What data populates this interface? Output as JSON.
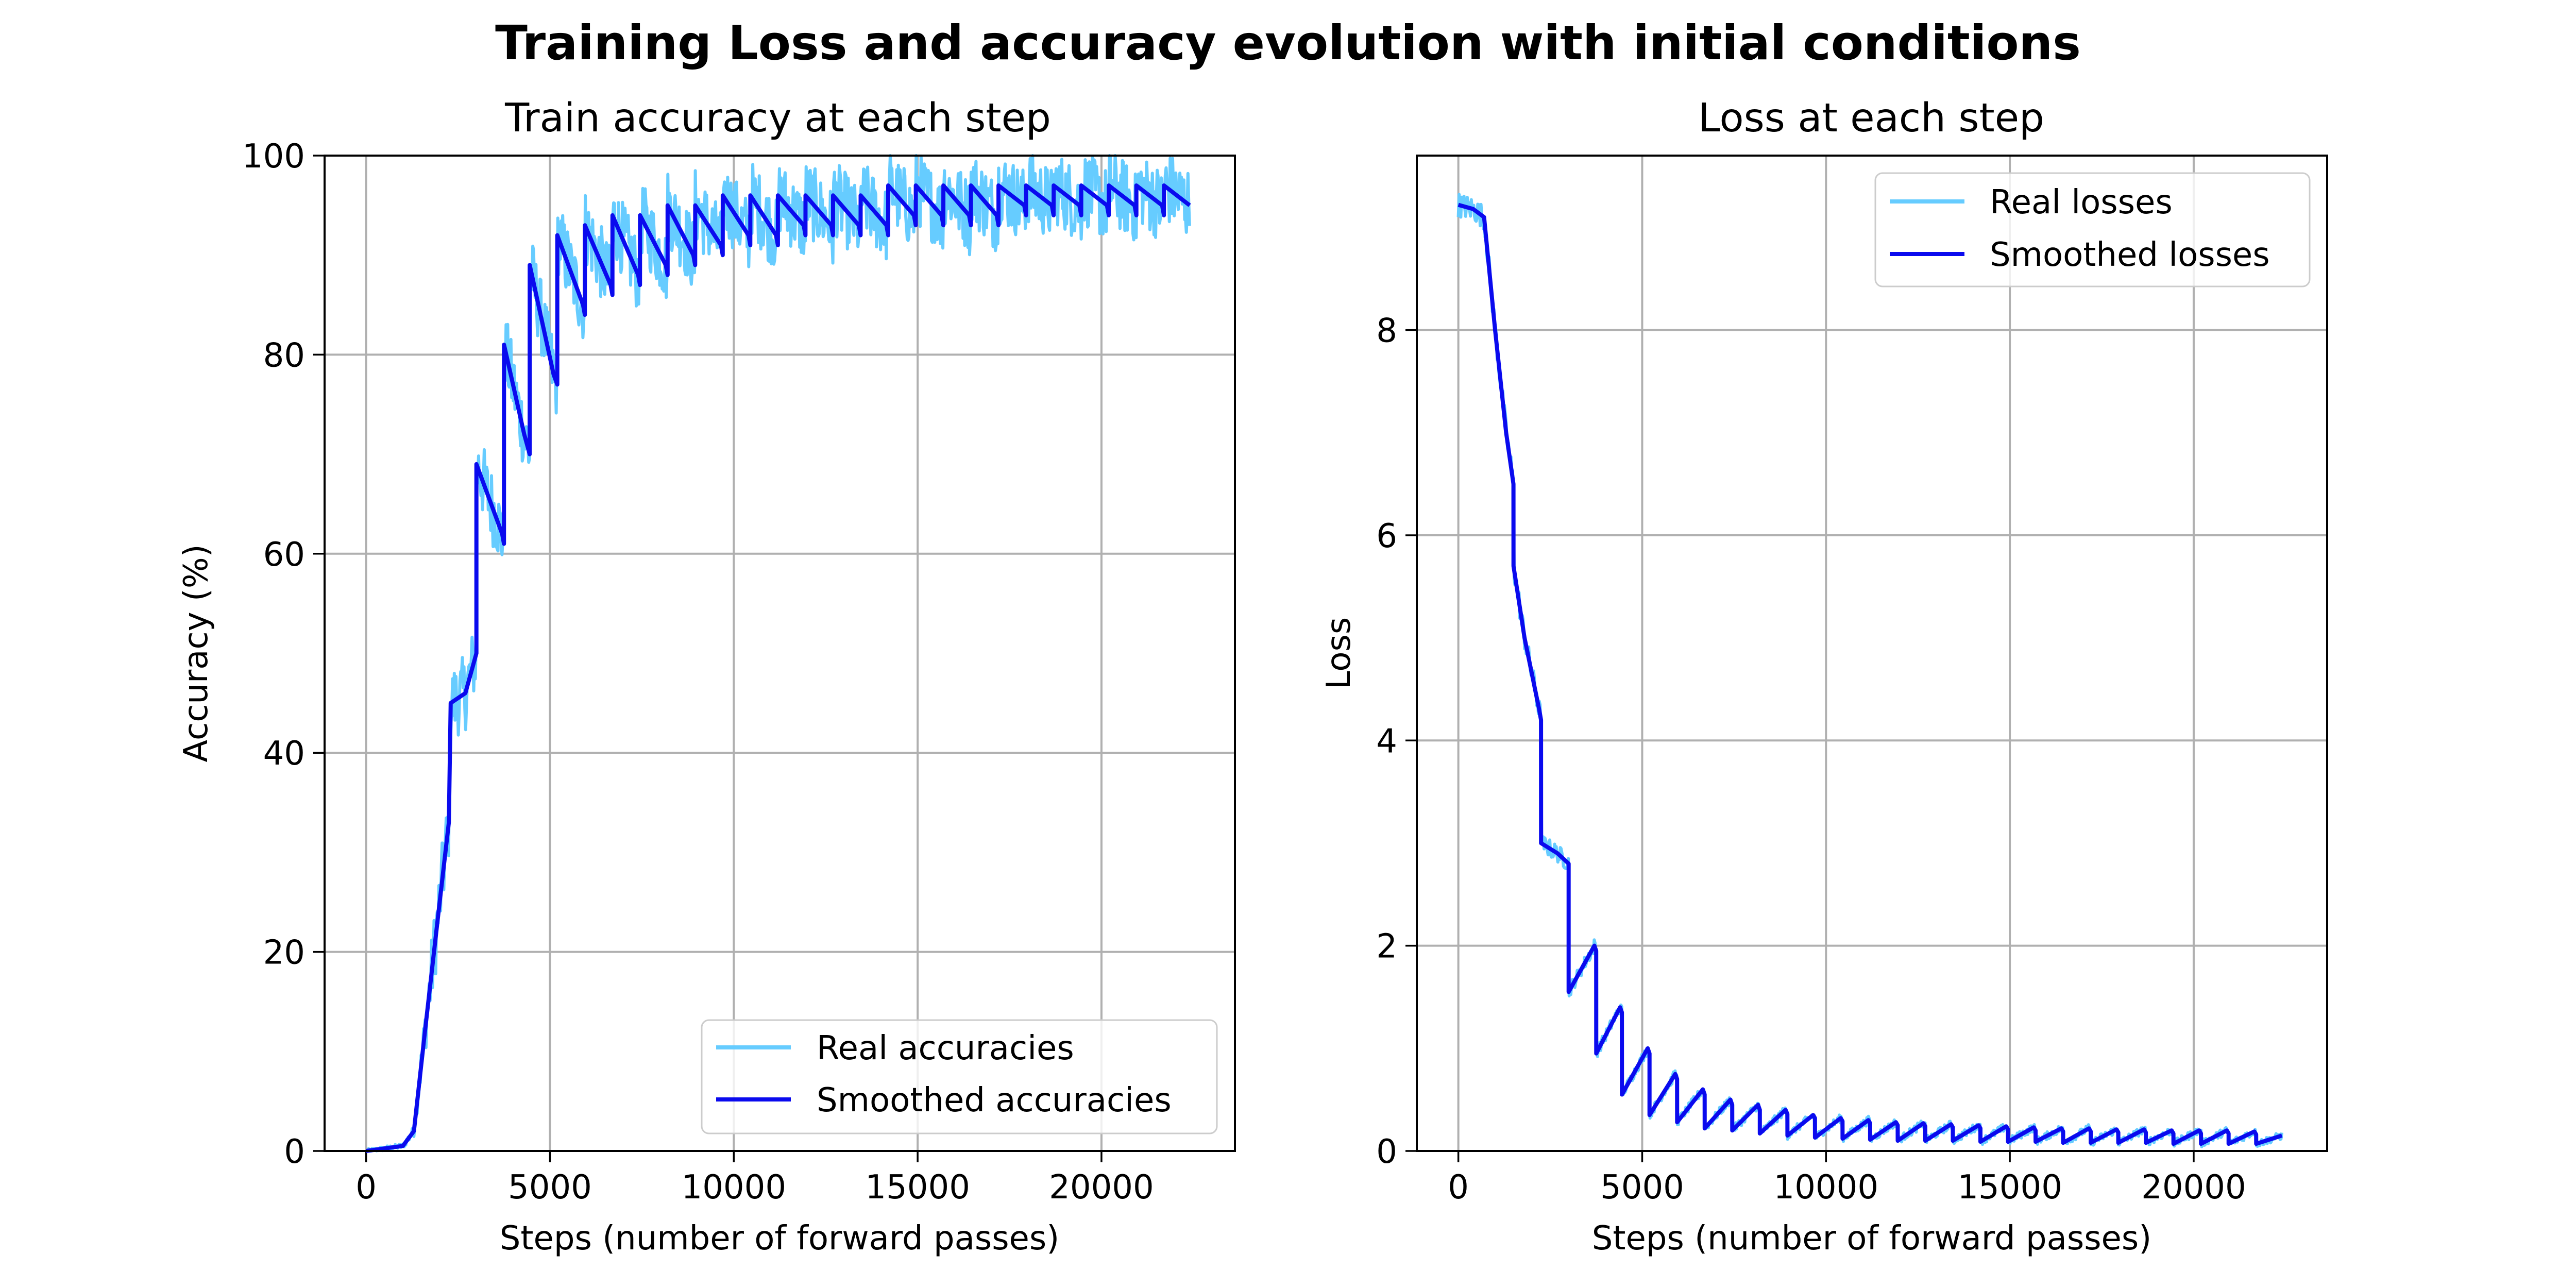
{
  "figure": {
    "title": "Training Loss and accuracy evolution with initial conditions"
  },
  "colors": {
    "real": "#66ccff",
    "smoothed": "#0a0aee"
  },
  "chart_data": [
    {
      "type": "line",
      "title": "Train accuracy at each step",
      "xlabel": "Steps (number of forward passes)",
      "ylabel": "Accuracy (%)",
      "xlim": [
        -1130,
        23630
      ],
      "ylim": [
        0,
        100
      ],
      "xticks": [
        0,
        5000,
        10000,
        15000,
        20000
      ],
      "yticks": [
        0,
        20,
        40,
        60,
        80,
        100
      ],
      "grid": true,
      "legend": "lower right",
      "series": [
        {
          "name": "Real accuracies",
          "color": "#66ccff",
          "noise": 3.8,
          "x": [
            0,
            1000,
            1300,
            1600,
            2000,
            2250,
            2300,
            2700,
            2999,
            3000,
            3700,
            3749,
            3750,
            4300,
            4449,
            4450,
            5100,
            5199,
            5200,
            5900,
            5949,
            5950,
            6650,
            6699,
            6700,
            7400,
            7449,
            7450,
            8150,
            8199,
            8200,
            8900,
            8949,
            8950,
            9650,
            9699,
            9700,
            10400,
            10449,
            10450,
            11150,
            11199,
            11200,
            11900,
            11949,
            11950,
            12650,
            12699,
            12700,
            13400,
            13449,
            13450,
            14150,
            14199,
            14200,
            14900,
            14949,
            14950,
            15650,
            15699,
            15700,
            16400,
            16449,
            16450,
            17150,
            17199,
            17200,
            17900,
            17949,
            17950,
            18650,
            18699,
            18700,
            19400,
            19449,
            19450,
            20150,
            20199,
            20200,
            20900,
            20949,
            20950,
            21650,
            21699,
            21700,
            22400
          ],
          "y": [
            0,
            0.5,
            2,
            12,
            25,
            33,
            45,
            46,
            50,
            69,
            62,
            61,
            81,
            72,
            70,
            89,
            78,
            77,
            92,
            85,
            84,
            93,
            87,
            86,
            94,
            88,
            87,
            94,
            89,
            88,
            95,
            90,
            89,
            95,
            91,
            90,
            96,
            92,
            91,
            96,
            92,
            91,
            96,
            93,
            92,
            96,
            93,
            92,
            96,
            93,
            92,
            96,
            93,
            92,
            97,
            94,
            93,
            97,
            94,
            93,
            97,
            94,
            93,
            97,
            94,
            93,
            97,
            95,
            94,
            97,
            95,
            94,
            97,
            95,
            94,
            97,
            95,
            94,
            97,
            95,
            94,
            97,
            95,
            94,
            97,
            95
          ]
        },
        {
          "name": "Smoothed accuracies",
          "color": "#0a0aee",
          "noise": 0,
          "x": [
            0,
            1000,
            1300,
            1600,
            2000,
            2250,
            2300,
            2700,
            2999,
            3000,
            3700,
            3749,
            3750,
            4300,
            4449,
            4450,
            5100,
            5199,
            5200,
            5900,
            5949,
            5950,
            6650,
            6699,
            6700,
            7400,
            7449,
            7450,
            8150,
            8199,
            8200,
            8900,
            8949,
            8950,
            9650,
            9699,
            9700,
            10400,
            10449,
            10450,
            11150,
            11199,
            11200,
            11900,
            11949,
            11950,
            12650,
            12699,
            12700,
            13400,
            13449,
            13450,
            14150,
            14199,
            14200,
            14900,
            14949,
            14950,
            15650,
            15699,
            15700,
            16400,
            16449,
            16450,
            17150,
            17199,
            17200,
            17900,
            17949,
            17950,
            18650,
            18699,
            18700,
            19400,
            19449,
            19450,
            20150,
            20199,
            20200,
            20900,
            20949,
            20950,
            21650,
            21699,
            21700,
            22400
          ],
          "y": [
            0,
            0.5,
            2,
            12,
            25,
            33,
            45,
            46,
            50,
            69,
            62,
            61,
            81,
            72,
            70,
            89,
            78,
            77,
            92,
            85,
            84,
            93,
            87,
            86,
            94,
            88,
            87,
            94,
            89,
            88,
            95,
            90,
            89,
            95,
            91,
            90,
            96,
            92,
            91,
            96,
            92,
            91,
            96,
            93,
            92,
            96,
            93,
            92,
            96,
            93,
            92,
            96,
            93,
            92,
            97,
            94,
            93,
            97,
            94,
            93,
            97,
            94,
            93,
            97,
            94,
            93,
            97,
            95,
            94,
            97,
            95,
            94,
            97,
            95,
            94,
            97,
            95,
            94,
            97,
            95,
            94,
            97,
            95,
            94,
            97,
            95
          ]
        }
      ]
    },
    {
      "type": "line",
      "title": "Loss at each step",
      "xlabel": "Steps (number of forward passes)",
      "ylabel": "Loss",
      "xlim": [
        -1130,
        23630
      ],
      "ylim": [
        0,
        9.7
      ],
      "xticks": [
        0,
        5000,
        10000,
        15000,
        20000
      ],
      "yticks": [
        0,
        2,
        4,
        6,
        8
      ],
      "grid": true,
      "legend": "upper right",
      "series": [
        {
          "name": "Real losses",
          "color": "#66ccff",
          "noise": 0.12,
          "x": [
            0,
            400,
            700,
            1000,
            1300,
            1499,
            1500,
            1800,
            2200,
            2249,
            2250,
            2700,
            2999,
            3000,
            3700,
            3749,
            3750,
            4400,
            4449,
            4450,
            5150,
            5199,
            5200,
            5900,
            5949,
            5950,
            6650,
            6699,
            6700,
            7400,
            7449,
            7450,
            8150,
            8199,
            8200,
            8900,
            8949,
            8950,
            9650,
            9699,
            9700,
            10400,
            10449,
            10450,
            11150,
            11199,
            11200,
            11900,
            11949,
            11950,
            12650,
            12699,
            12700,
            13400,
            13449,
            13450,
            14150,
            14199,
            14200,
            14900,
            14949,
            14950,
            15650,
            15699,
            15700,
            16400,
            16449,
            16450,
            17150,
            17199,
            17200,
            17900,
            17949,
            17950,
            18650,
            18699,
            18700,
            19400,
            19449,
            19450,
            20150,
            20199,
            20200,
            20900,
            20949,
            20950,
            21650,
            21699,
            21700,
            22400
          ],
          "y": [
            9.22,
            9.18,
            9.1,
            8.0,
            7.0,
            6.5,
            5.7,
            5.0,
            4.3,
            4.2,
            3.0,
            2.9,
            2.8,
            1.55,
            2.0,
            1.95,
            0.95,
            1.4,
            1.35,
            0.55,
            1.0,
            0.95,
            0.35,
            0.75,
            0.7,
            0.28,
            0.6,
            0.55,
            0.22,
            0.5,
            0.45,
            0.2,
            0.45,
            0.4,
            0.17,
            0.4,
            0.36,
            0.15,
            0.35,
            0.32,
            0.13,
            0.32,
            0.29,
            0.12,
            0.3,
            0.27,
            0.11,
            0.28,
            0.25,
            0.1,
            0.27,
            0.24,
            0.1,
            0.26,
            0.23,
            0.1,
            0.25,
            0.22,
            0.09,
            0.24,
            0.21,
            0.09,
            0.23,
            0.2,
            0.09,
            0.22,
            0.19,
            0.08,
            0.22,
            0.19,
            0.08,
            0.21,
            0.18,
            0.08,
            0.21,
            0.18,
            0.08,
            0.2,
            0.17,
            0.07,
            0.2,
            0.17,
            0.07,
            0.2,
            0.17,
            0.07,
            0.19,
            0.16,
            0.07,
            0.15
          ]
        },
        {
          "name": "Smoothed losses",
          "color": "#0a0aee",
          "noise": 0,
          "x": [
            0,
            400,
            700,
            1000,
            1300,
            1499,
            1500,
            1800,
            2200,
            2249,
            2250,
            2700,
            2999,
            3000,
            3700,
            3749,
            3750,
            4400,
            4449,
            4450,
            5150,
            5199,
            5200,
            5900,
            5949,
            5950,
            6650,
            6699,
            6700,
            7400,
            7449,
            7450,
            8150,
            8199,
            8200,
            8900,
            8949,
            8950,
            9650,
            9699,
            9700,
            10400,
            10449,
            10450,
            11150,
            11199,
            11200,
            11900,
            11949,
            11950,
            12650,
            12699,
            12700,
            13400,
            13449,
            13450,
            14150,
            14199,
            14200,
            14900,
            14949,
            14950,
            15650,
            15699,
            15700,
            16400,
            16449,
            16450,
            17150,
            17199,
            17200,
            17900,
            17949,
            17950,
            18650,
            18699,
            18700,
            19400,
            19449,
            19450,
            20150,
            20199,
            20200,
            20900,
            20949,
            20950,
            21650,
            21699,
            21700,
            22400
          ],
          "y": [
            9.22,
            9.18,
            9.1,
            8.0,
            7.0,
            6.5,
            5.7,
            5.0,
            4.3,
            4.2,
            3.0,
            2.9,
            2.8,
            1.55,
            2.0,
            1.95,
            0.95,
            1.4,
            1.35,
            0.55,
            1.0,
            0.95,
            0.35,
            0.75,
            0.7,
            0.28,
            0.6,
            0.55,
            0.22,
            0.5,
            0.45,
            0.2,
            0.45,
            0.4,
            0.17,
            0.4,
            0.36,
            0.15,
            0.35,
            0.32,
            0.13,
            0.32,
            0.29,
            0.12,
            0.3,
            0.27,
            0.11,
            0.28,
            0.25,
            0.1,
            0.27,
            0.24,
            0.1,
            0.26,
            0.23,
            0.1,
            0.25,
            0.22,
            0.09,
            0.24,
            0.21,
            0.09,
            0.23,
            0.2,
            0.09,
            0.22,
            0.19,
            0.08,
            0.22,
            0.19,
            0.08,
            0.21,
            0.18,
            0.08,
            0.21,
            0.18,
            0.08,
            0.2,
            0.17,
            0.07,
            0.2,
            0.17,
            0.07,
            0.2,
            0.17,
            0.07,
            0.19,
            0.16,
            0.07,
            0.15
          ]
        }
      ]
    }
  ]
}
